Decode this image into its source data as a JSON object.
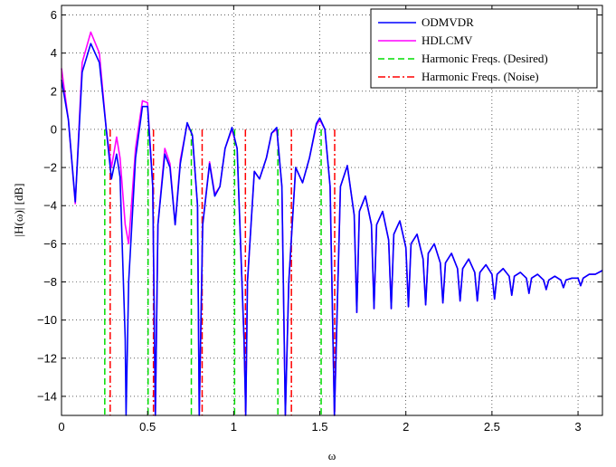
{
  "chart_data": {
    "type": "line",
    "title": "",
    "xlabel": "ω",
    "ylabel": "|H(ω)| [dB]",
    "xlim": [
      0,
      3.1416
    ],
    "ylim": [
      -15,
      6.5
    ],
    "xticks": [
      0,
      0.5,
      1,
      1.5,
      2,
      2.5,
      3
    ],
    "xtick_labels": [
      "0",
      "0.5",
      "1",
      "1.5",
      "2",
      "2.5",
      "3"
    ],
    "yticks": [
      6,
      4,
      2,
      0,
      -2,
      -4,
      -6,
      -8,
      -10,
      -12,
      -14
    ],
    "ytick_labels": [
      "6",
      "4",
      "2",
      "0",
      "−2",
      "−4",
      "−6",
      "−8",
      "−10",
      "−12",
      "−14"
    ],
    "grid": true,
    "legend_position": "top-right",
    "colors": {
      "ODMVDR": "#0000ff",
      "HDLCMV": "#ff00ff",
      "desired": "#00dd00",
      "noise": "#ff0000"
    },
    "series": [
      {
        "name": "ODMVDR",
        "points": [
          [
            0.0,
            2.6
          ],
          [
            0.04,
            0.5
          ],
          [
            0.08,
            -3.8
          ],
          [
            0.12,
            3.0
          ],
          [
            0.17,
            4.5
          ],
          [
            0.22,
            3.5
          ],
          [
            0.26,
            0.0
          ],
          [
            0.29,
            -2.6
          ],
          [
            0.32,
            -1.3
          ],
          [
            0.34,
            -2.5
          ],
          [
            0.37,
            -11.0
          ],
          [
            0.375,
            -15.0
          ],
          [
            0.39,
            -8.0
          ],
          [
            0.43,
            -1.5
          ],
          [
            0.47,
            1.2
          ],
          [
            0.5,
            1.2
          ],
          [
            0.53,
            -3.0
          ],
          [
            0.545,
            -15.0
          ],
          [
            0.56,
            -5.0
          ],
          [
            0.6,
            -1.3
          ],
          [
            0.63,
            -2.0
          ],
          [
            0.66,
            -5.0
          ],
          [
            0.69,
            -1.8
          ],
          [
            0.73,
            0.35
          ],
          [
            0.76,
            -0.3
          ],
          [
            0.79,
            -4.0
          ],
          [
            0.8,
            -15.0
          ],
          [
            0.82,
            -5.0
          ],
          [
            0.86,
            -1.8
          ],
          [
            0.89,
            -3.5
          ],
          [
            0.92,
            -3.0
          ],
          [
            0.95,
            -1.0
          ],
          [
            0.99,
            0.1
          ],
          [
            1.02,
            -1.0
          ],
          [
            1.06,
            -11.0
          ],
          [
            1.07,
            -15.0
          ],
          [
            1.08,
            -8.0
          ],
          [
            1.12,
            -2.2
          ],
          [
            1.15,
            -2.6
          ],
          [
            1.19,
            -1.5
          ],
          [
            1.22,
            -0.2
          ],
          [
            1.25,
            0.1
          ],
          [
            1.28,
            -3.0
          ],
          [
            1.3,
            -15.0
          ],
          [
            1.32,
            -8.0
          ],
          [
            1.36,
            -2.0
          ],
          [
            1.4,
            -2.8
          ],
          [
            1.44,
            -1.5
          ],
          [
            1.48,
            0.3
          ],
          [
            1.5,
            0.6
          ],
          [
            1.53,
            0.0
          ],
          [
            1.56,
            -3.0
          ],
          [
            1.585,
            -15.0
          ],
          [
            1.62,
            -3.0
          ],
          [
            1.66,
            -1.9
          ],
          [
            1.7,
            -4.5
          ],
          [
            1.715,
            -9.6
          ],
          [
            1.73,
            -4.3
          ],
          [
            1.765,
            -3.5
          ],
          [
            1.8,
            -5.0
          ],
          [
            1.815,
            -9.4
          ],
          [
            1.83,
            -5.0
          ],
          [
            1.865,
            -4.3
          ],
          [
            1.9,
            -5.8
          ],
          [
            1.915,
            -9.4
          ],
          [
            1.93,
            -5.5
          ],
          [
            1.965,
            -4.8
          ],
          [
            2.0,
            -6.2
          ],
          [
            2.015,
            -9.3
          ],
          [
            2.03,
            -6.0
          ],
          [
            2.065,
            -5.5
          ],
          [
            2.1,
            -6.8
          ],
          [
            2.115,
            -9.2
          ],
          [
            2.13,
            -6.5
          ],
          [
            2.165,
            -6.0
          ],
          [
            2.2,
            -7.0
          ],
          [
            2.215,
            -9.1
          ],
          [
            2.23,
            -7.0
          ],
          [
            2.265,
            -6.5
          ],
          [
            2.3,
            -7.3
          ],
          [
            2.315,
            -9.0
          ],
          [
            2.33,
            -7.3
          ],
          [
            2.365,
            -6.8
          ],
          [
            2.4,
            -7.5
          ],
          [
            2.415,
            -9.0
          ],
          [
            2.43,
            -7.5
          ],
          [
            2.465,
            -7.1
          ],
          [
            2.5,
            -7.6
          ],
          [
            2.515,
            -8.9
          ],
          [
            2.53,
            -7.6
          ],
          [
            2.565,
            -7.3
          ],
          [
            2.6,
            -7.7
          ],
          [
            2.615,
            -8.7
          ],
          [
            2.63,
            -7.7
          ],
          [
            2.665,
            -7.5
          ],
          [
            2.7,
            -7.8
          ],
          [
            2.715,
            -8.6
          ],
          [
            2.73,
            -7.8
          ],
          [
            2.765,
            -7.6
          ],
          [
            2.8,
            -7.9
          ],
          [
            2.815,
            -8.4
          ],
          [
            2.83,
            -7.9
          ],
          [
            2.865,
            -7.7
          ],
          [
            2.9,
            -7.9
          ],
          [
            2.915,
            -8.3
          ],
          [
            2.93,
            -7.9
          ],
          [
            2.965,
            -7.8
          ],
          [
            3.0,
            -7.8
          ],
          [
            3.015,
            -8.2
          ],
          [
            3.03,
            -7.8
          ],
          [
            3.065,
            -7.6
          ],
          [
            3.1,
            -7.6
          ],
          [
            3.1416,
            -7.4
          ]
        ]
      },
      {
        "name": "HDLCMV",
        "points": [
          [
            0.0,
            3.2
          ],
          [
            0.04,
            0.5
          ],
          [
            0.08,
            -3.9
          ],
          [
            0.12,
            3.5
          ],
          [
            0.17,
            5.1
          ],
          [
            0.22,
            4.0
          ],
          [
            0.26,
            0.0
          ],
          [
            0.29,
            -2.0
          ],
          [
            0.32,
            -0.4
          ],
          [
            0.34,
            -1.5
          ],
          [
            0.37,
            -5.0
          ],
          [
            0.39,
            -6.0
          ],
          [
            0.43,
            -1.0
          ],
          [
            0.47,
            1.5
          ],
          [
            0.5,
            1.4
          ],
          [
            0.53,
            -3.0
          ],
          [
            0.545,
            -15.0
          ],
          [
            0.56,
            -5.0
          ],
          [
            0.6,
            -1.0
          ],
          [
            0.63,
            -1.8
          ],
          [
            0.66,
            -5.0
          ],
          [
            0.69,
            -1.6
          ],
          [
            0.73,
            0.3
          ],
          [
            0.76,
            -0.3
          ],
          [
            0.79,
            -4.0
          ],
          [
            0.8,
            -15.0
          ],
          [
            0.82,
            -5.0
          ],
          [
            0.86,
            -1.7
          ],
          [
            0.89,
            -3.4
          ],
          [
            0.92,
            -3.0
          ],
          [
            0.95,
            -1.0
          ],
          [
            0.99,
            0.0
          ],
          [
            1.02,
            -1.0
          ],
          [
            1.06,
            -11.0
          ],
          [
            1.07,
            -15.0
          ],
          [
            1.08,
            -8.0
          ],
          [
            1.12,
            -2.2
          ],
          [
            1.15,
            -2.6
          ],
          [
            1.19,
            -1.5
          ],
          [
            1.22,
            -0.2
          ],
          [
            1.25,
            0.0
          ],
          [
            1.28,
            -3.0
          ],
          [
            1.3,
            -15.0
          ],
          [
            1.32,
            -8.0
          ],
          [
            1.36,
            -2.0
          ],
          [
            1.4,
            -2.8
          ],
          [
            1.44,
            -1.5
          ],
          [
            1.48,
            0.2
          ],
          [
            1.5,
            0.5
          ],
          [
            1.53,
            0.0
          ],
          [
            1.56,
            -3.0
          ],
          [
            1.585,
            -15.0
          ],
          [
            1.62,
            -3.0
          ],
          [
            1.66,
            -1.9
          ],
          [
            1.7,
            -4.5
          ],
          [
            1.715,
            -9.6
          ],
          [
            1.73,
            -4.3
          ],
          [
            1.765,
            -3.5
          ],
          [
            1.8,
            -5.0
          ],
          [
            1.815,
            -9.4
          ],
          [
            1.83,
            -5.0
          ],
          [
            1.865,
            -4.3
          ],
          [
            1.9,
            -5.8
          ],
          [
            1.915,
            -9.4
          ],
          [
            1.93,
            -5.5
          ],
          [
            1.965,
            -4.8
          ],
          [
            2.0,
            -6.2
          ],
          [
            2.015,
            -9.3
          ],
          [
            2.03,
            -6.0
          ],
          [
            2.065,
            -5.5
          ],
          [
            2.1,
            -6.8
          ],
          [
            2.115,
            -9.2
          ],
          [
            2.13,
            -6.5
          ],
          [
            2.165,
            -6.0
          ],
          [
            2.2,
            -7.0
          ],
          [
            2.215,
            -9.1
          ],
          [
            2.23,
            -7.0
          ],
          [
            2.265,
            -6.5
          ],
          [
            2.3,
            -7.3
          ],
          [
            2.315,
            -9.0
          ],
          [
            2.33,
            -7.3
          ],
          [
            2.365,
            -6.8
          ],
          [
            2.4,
            -7.5
          ],
          [
            2.415,
            -9.0
          ],
          [
            2.43,
            -7.5
          ],
          [
            2.465,
            -7.1
          ],
          [
            2.5,
            -7.6
          ],
          [
            2.515,
            -8.9
          ],
          [
            2.53,
            -7.6
          ],
          [
            2.565,
            -7.3
          ],
          [
            2.6,
            -7.7
          ],
          [
            2.615,
            -8.7
          ],
          [
            2.63,
            -7.7
          ],
          [
            2.665,
            -7.5
          ],
          [
            2.7,
            -7.8
          ],
          [
            2.715,
            -8.6
          ],
          [
            2.73,
            -7.8
          ],
          [
            2.765,
            -7.6
          ],
          [
            2.8,
            -7.9
          ],
          [
            2.815,
            -8.4
          ],
          [
            2.83,
            -7.9
          ],
          [
            2.865,
            -7.7
          ],
          [
            2.9,
            -7.9
          ],
          [
            2.915,
            -8.3
          ],
          [
            2.93,
            -7.9
          ],
          [
            2.965,
            -7.8
          ],
          [
            3.0,
            -7.8
          ],
          [
            3.015,
            -8.2
          ],
          [
            3.03,
            -7.8
          ],
          [
            3.065,
            -7.6
          ],
          [
            3.1,
            -7.6
          ],
          [
            3.1416,
            -7.4
          ]
        ]
      }
    ],
    "vlines": [
      {
        "name": "Harmonic Freqs. (Desired)",
        "style": "dashed",
        "lines": [
          {
            "x": 0.2513,
            "top": 0
          },
          {
            "x": 0.5027,
            "top": 0
          },
          {
            "x": 0.754,
            "top": 0
          },
          {
            "x": 1.0053,
            "top": 0
          },
          {
            "x": 1.2566,
            "top": 0
          },
          {
            "x": 1.508,
            "top": 0
          }
        ]
      },
      {
        "name": "Harmonic Freqs. (Noise)",
        "style": "dashdot",
        "lines": [
          {
            "x": 0.2827,
            "top": 0
          },
          {
            "x": 0.5341,
            "top": 0
          },
          {
            "x": 0.8168,
            "top": 0
          },
          {
            "x": 1.0681,
            "top": 0
          },
          {
            "x": 1.3352,
            "top": 0
          },
          {
            "x": 1.5865,
            "top": 0
          }
        ]
      }
    ],
    "legend": [
      "ODMVDR",
      "HDLCMV",
      "Harmonic Freqs. (Desired)",
      "Harmonic Freqs. (Noise)"
    ]
  }
}
